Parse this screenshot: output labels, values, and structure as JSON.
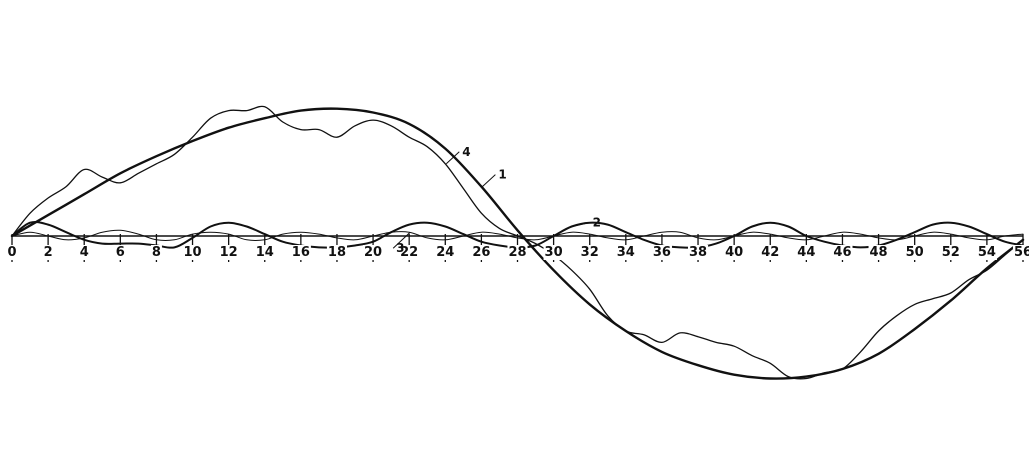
{
  "chart_data": {
    "type": "line",
    "title": "",
    "xlabel": "",
    "ylabel": "",
    "xlim": [
      0,
      56
    ],
    "ylim": [
      -1.4,
      1.4
    ],
    "grid": false,
    "legend": "none",
    "x_ticks": [
      0,
      2,
      4,
      6,
      8,
      10,
      12,
      14,
      16,
      18,
      20,
      22,
      24,
      26,
      28,
      30,
      32,
      34,
      36,
      38,
      40,
      42,
      44,
      46,
      48,
      50,
      52,
      54,
      56
    ],
    "x_tick_labels": [
      "0",
      "2",
      "4",
      "6",
      "8",
      "10",
      "12",
      "14",
      "16",
      "18",
      "20",
      "22",
      "24",
      "26",
      "28",
      "30",
      "32",
      "34",
      "36",
      "38",
      "40",
      "42",
      "44",
      "46",
      "48",
      "50",
      "52",
      "54",
      "56"
    ],
    "colors": {
      "ink": "#111111",
      "background": "#ffffff"
    },
    "series": [
      {
        "name": "1",
        "style": "thick",
        "points": [
          [
            0,
            0
          ],
          [
            2,
            0.11
          ],
          [
            4,
            0.22
          ],
          [
            6,
            0.33
          ],
          [
            8,
            0.42
          ],
          [
            10,
            0.5
          ],
          [
            12,
            0.57
          ],
          [
            14,
            0.62
          ],
          [
            16,
            0.66
          ],
          [
            18,
            0.67
          ],
          [
            20,
            0.65
          ],
          [
            22,
            0.59
          ],
          [
            24,
            0.46
          ],
          [
            26,
            0.26
          ],
          [
            28,
            0.03
          ],
          [
            30,
            -0.18
          ],
          [
            32,
            -0.36
          ],
          [
            34,
            -0.5
          ],
          [
            36,
            -0.61
          ],
          [
            38,
            -0.68
          ],
          [
            40,
            -0.73
          ],
          [
            42,
            -0.75
          ],
          [
            44,
            -0.74
          ],
          [
            46,
            -0.7
          ],
          [
            48,
            -0.62
          ],
          [
            50,
            -0.49
          ],
          [
            52,
            -0.34
          ],
          [
            54,
            -0.17
          ],
          [
            56,
            -0.02
          ]
        ]
      },
      {
        "name": "2",
        "style": "medium",
        "points": [
          [
            0,
            0
          ],
          [
            1,
            0.07
          ],
          [
            2,
            0.06
          ],
          [
            3,
            0.02
          ],
          [
            4,
            -0.02
          ],
          [
            5,
            -0.04
          ],
          [
            6,
            -0.04
          ],
          [
            7,
            -0.04
          ],
          [
            8,
            -0.05
          ],
          [
            9,
            -0.06
          ],
          [
            10,
            -0.01
          ],
          [
            11,
            0.05
          ],
          [
            12,
            0.07
          ],
          [
            13,
            0.05
          ],
          [
            14,
            0.01
          ],
          [
            15,
            -0.03
          ],
          [
            16,
            -0.05
          ],
          [
            17,
            -0.06
          ],
          [
            18,
            -0.06
          ],
          [
            19,
            -0.05
          ],
          [
            20,
            -0.03
          ],
          [
            21,
            0.02
          ],
          [
            22,
            0.06
          ],
          [
            23,
            0.07
          ],
          [
            24,
            0.05
          ],
          [
            25,
            0.01
          ],
          [
            26,
            -0.03
          ],
          [
            27,
            -0.05
          ],
          [
            28,
            -0.06
          ],
          [
            29,
            -0.05
          ],
          [
            30,
            0.0
          ],
          [
            31,
            0.05
          ],
          [
            32,
            0.07
          ],
          [
            33,
            0.06
          ],
          [
            34,
            0.02
          ],
          [
            35,
            -0.02
          ],
          [
            36,
            -0.05
          ],
          [
            37,
            -0.06
          ],
          [
            38,
            -0.06
          ],
          [
            39,
            -0.04
          ],
          [
            40,
            0.0
          ],
          [
            41,
            0.05
          ],
          [
            42,
            0.07
          ],
          [
            43,
            0.05
          ],
          [
            44,
            0.0
          ],
          [
            45,
            -0.03
          ],
          [
            46,
            -0.05
          ],
          [
            47,
            -0.06
          ],
          [
            48,
            -0.05
          ],
          [
            49,
            -0.02
          ],
          [
            50,
            0.02
          ],
          [
            51,
            0.06
          ],
          [
            52,
            0.07
          ],
          [
            53,
            0.05
          ],
          [
            54,
            0.01
          ],
          [
            55,
            -0.03
          ],
          [
            56,
            -0.05
          ]
        ]
      },
      {
        "name": "3",
        "style": "thin",
        "points": [
          [
            0,
            0
          ],
          [
            1,
            0.02
          ],
          [
            2,
            0.0
          ],
          [
            3,
            -0.02
          ],
          [
            4,
            -0.01
          ],
          [
            5,
            0.02
          ],
          [
            6,
            0.03
          ],
          [
            7,
            0.01
          ],
          [
            8,
            -0.02
          ],
          [
            9,
            -0.02
          ],
          [
            10,
            0.01
          ],
          [
            11,
            0.02
          ],
          [
            12,
            0.01
          ],
          [
            13,
            -0.02
          ],
          [
            14,
            -0.02
          ],
          [
            15,
            0.01
          ],
          [
            16,
            0.02
          ],
          [
            17,
            0.01
          ],
          [
            18,
            -0.01
          ],
          [
            19,
            -0.02
          ],
          [
            20,
            0.0
          ],
          [
            21,
            0.02
          ],
          [
            22,
            0.02
          ],
          [
            23,
            -0.01
          ],
          [
            24,
            -0.02
          ],
          [
            25,
            0.0
          ],
          [
            26,
            0.02
          ],
          [
            27,
            0.01
          ],
          [
            28,
            -0.01
          ],
          [
            29,
            -0.02
          ],
          [
            30,
            0.0
          ],
          [
            31,
            0.02
          ],
          [
            32,
            0.01
          ],
          [
            33,
            -0.01
          ],
          [
            34,
            -0.02
          ],
          [
            35,
            0.0
          ],
          [
            36,
            0.02
          ],
          [
            37,
            0.02
          ],
          [
            38,
            -0.01
          ],
          [
            39,
            -0.02
          ],
          [
            40,
            0.0
          ],
          [
            41,
            0.02
          ],
          [
            42,
            0.01
          ],
          [
            43,
            -0.01
          ],
          [
            44,
            -0.02
          ],
          [
            45,
            0.0
          ],
          [
            46,
            0.02
          ],
          [
            47,
            0.01
          ],
          [
            48,
            -0.01
          ],
          [
            49,
            -0.02
          ],
          [
            50,
            0.0
          ],
          [
            51,
            0.02
          ],
          [
            52,
            0.01
          ],
          [
            53,
            -0.01
          ],
          [
            54,
            -0.02
          ],
          [
            55,
            0.0
          ],
          [
            56,
            0.01
          ]
        ]
      },
      {
        "name": "4",
        "style": "thin-wavy",
        "points": [
          [
            0,
            0
          ],
          [
            1,
            0.12
          ],
          [
            2,
            0.2
          ],
          [
            3,
            0.26
          ],
          [
            4,
            0.35
          ],
          [
            5,
            0.31
          ],
          [
            6,
            0.28
          ],
          [
            7,
            0.33
          ],
          [
            8,
            0.38
          ],
          [
            9,
            0.43
          ],
          [
            10,
            0.52
          ],
          [
            11,
            0.62
          ],
          [
            12,
            0.66
          ],
          [
            13,
            0.66
          ],
          [
            14,
            0.68
          ],
          [
            15,
            0.6
          ],
          [
            16,
            0.56
          ],
          [
            17,
            0.56
          ],
          [
            18,
            0.52
          ],
          [
            19,
            0.58
          ],
          [
            20,
            0.61
          ],
          [
            21,
            0.58
          ],
          [
            22,
            0.52
          ],
          [
            23,
            0.47
          ],
          [
            24,
            0.38
          ],
          [
            25,
            0.25
          ],
          [
            26,
            0.12
          ],
          [
            27,
            0.04
          ],
          [
            28,
            0.0
          ],
          [
            29,
            -0.04
          ],
          [
            30,
            -0.1
          ],
          [
            31,
            -0.18
          ],
          [
            32,
            -0.28
          ],
          [
            33,
            -0.42
          ],
          [
            34,
            -0.5
          ],
          [
            35,
            -0.52
          ],
          [
            36,
            -0.56
          ],
          [
            37,
            -0.51
          ],
          [
            38,
            -0.53
          ],
          [
            39,
            -0.56
          ],
          [
            40,
            -0.58
          ],
          [
            41,
            -0.63
          ],
          [
            42,
            -0.67
          ],
          [
            43,
            -0.74
          ],
          [
            44,
            -0.75
          ],
          [
            45,
            -0.72
          ],
          [
            46,
            -0.7
          ],
          [
            47,
            -0.61
          ],
          [
            48,
            -0.5
          ],
          [
            49,
            -0.42
          ],
          [
            50,
            -0.36
          ],
          [
            51,
            -0.33
          ],
          [
            52,
            -0.3
          ],
          [
            53,
            -0.23
          ],
          [
            54,
            -0.18
          ],
          [
            55,
            -0.1
          ],
          [
            56,
            -0.02
          ]
        ]
      }
    ],
    "annotations": [
      {
        "text": "1",
        "series": "1",
        "at_x": 26
      },
      {
        "text": "2",
        "series": "2",
        "at_x": 31
      },
      {
        "text": "3",
        "series": "3",
        "at_x": 22
      },
      {
        "text": "4",
        "series": "4",
        "at_x": 24
      }
    ]
  }
}
